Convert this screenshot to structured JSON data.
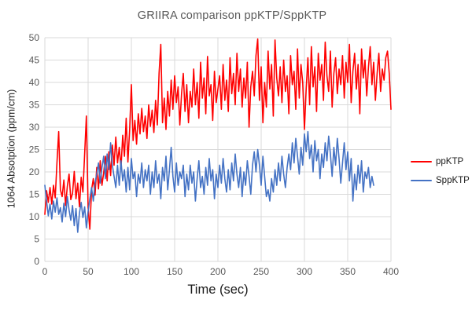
{
  "chart_data": {
    "type": "line",
    "title": "GRIIRA comparison ppKTP/SppKTP",
    "xlabel": "Time (sec)",
    "ylabel": "1064 Absotption (ppm/cm)",
    "xlim": [
      0,
      400
    ],
    "ylim": [
      0,
      50
    ],
    "xticks": [
      0,
      50,
      100,
      150,
      200,
      250,
      300,
      350,
      400
    ],
    "yticks": [
      0,
      5,
      10,
      15,
      20,
      25,
      30,
      35,
      40,
      45,
      50
    ],
    "grid": true,
    "legend_position": "right",
    "colors": {
      "grid": "#d9d9d9",
      "tick_label": "#595959",
      "title": "#595959",
      "axis_title": "#262626"
    },
    "series": [
      {
        "name": "ppKTP",
        "color": "#ff0000",
        "x_start": 0,
        "x_step": 2,
        "y": [
          10.5,
          15.8,
          13.2,
          16.5,
          12.8,
          17.0,
          14.2,
          22.0,
          29.0,
          16.0,
          14.5,
          18.2,
          12.5,
          16.8,
          19.5,
          13.8,
          15.2,
          20.1,
          14.0,
          17.5,
          12.2,
          18.8,
          15.5,
          24.0,
          32.5,
          12.0,
          7.2,
          16.0,
          18.5,
          14.8,
          21.0,
          16.2,
          22.5,
          17.0,
          19.8,
          23.5,
          18.0,
          24.5,
          19.2,
          26.0,
          21.5,
          27.8,
          22.0,
          25.5,
          20.8,
          28.2,
          23.5,
          32.0,
          22.2,
          29.5,
          39.5,
          27.0,
          31.5,
          26.2,
          33.0,
          28.5,
          34.2,
          29.0,
          32.5,
          27.5,
          35.0,
          30.2,
          33.8,
          28.8,
          36.0,
          30.5,
          42.0,
          48.5,
          31.0,
          36.5,
          29.5,
          38.0,
          32.5,
          40.5,
          34.0,
          41.5,
          35.5,
          39.0,
          30.5,
          37.5,
          42.0,
          33.5,
          39.5,
          31.0,
          38.0,
          34.5,
          43.0,
          35.0,
          40.0,
          32.0,
          44.5,
          36.5,
          41.0,
          33.0,
          45.8,
          37.0,
          39.5,
          31.5,
          42.5,
          35.5,
          38.5,
          41.5,
          34.0,
          44.0,
          36.0,
          40.5,
          33.5,
          45.5,
          37.5,
          42.0,
          35.0,
          46.5,
          38.0,
          43.0,
          34.5,
          41.0,
          36.5,
          44.5,
          30.0,
          39.0,
          42.5,
          37.0,
          46.0,
          49.7,
          36.0,
          43.5,
          31.0,
          40.0,
          34.5,
          47.0,
          38.5,
          44.0,
          32.5,
          49.5,
          41.0,
          37.0,
          43.5,
          35.5,
          45.0,
          38.0,
          41.5,
          33.0,
          46.0,
          39.5,
          42.5,
          34.0,
          47.5,
          36.5,
          44.0,
          40.0,
          29.5,
          38.5,
          45.5,
          35.0,
          48.0,
          39.0,
          43.5,
          33.5,
          46.5,
          40.5,
          44.0,
          36.0,
          49.0,
          41.5,
          38.0,
          47.0,
          34.5,
          42.0,
          45.5,
          37.5,
          43.0,
          39.5,
          46.0,
          36.5,
          44.5,
          40.0,
          48.5,
          35.5,
          42.5,
          46.5,
          38.5,
          44.0,
          33.0,
          47.5,
          41.0,
          45.0,
          37.0,
          43.5,
          48.0,
          39.5,
          44.5,
          36.0,
          42.0,
          46.5,
          38.0,
          43.0,
          40.5,
          45.5,
          47.0,
          42.0,
          34.0
        ]
      },
      {
        "name": "SppKTP",
        "color": "#4472c4",
        "x_start": 0,
        "x_step": 2,
        "y": [
          17.0,
          13.5,
          10.2,
          12.8,
          9.5,
          13.5,
          11.0,
          14.2,
          10.5,
          12.0,
          8.8,
          13.0,
          10.0,
          14.5,
          11.5,
          9.2,
          12.5,
          8.0,
          11.8,
          6.5,
          10.8,
          13.2,
          9.8,
          12.2,
          7.5,
          11.2,
          14.0,
          16.5,
          13.5,
          17.5,
          19.5,
          22.0,
          17.5,
          21.0,
          23.5,
          18.5,
          24.0,
          20.5,
          26.5,
          21.5,
          19.0,
          16.5,
          21.5,
          17.0,
          22.5,
          18.0,
          20.5,
          15.5,
          21.0,
          16.0,
          23.0,
          18.5,
          20.0,
          14.5,
          19.5,
          17.5,
          22.0,
          16.5,
          20.5,
          18.0,
          21.5,
          15.0,
          20.0,
          16.5,
          22.5,
          17.5,
          19.5,
          14.0,
          21.0,
          18.0,
          23.5,
          16.0,
          20.5,
          25.5,
          19.0,
          15.5,
          22.0,
          17.0,
          20.0,
          18.5,
          21.5,
          14.5,
          19.5,
          16.0,
          21.5,
          17.5,
          20.0,
          13.5,
          18.5,
          22.5,
          16.5,
          19.0,
          15.0,
          21.0,
          17.0,
          23.0,
          18.0,
          20.5,
          14.0,
          19.5,
          16.5,
          21.5,
          17.5,
          23.0,
          18.5,
          15.5,
          20.5,
          16.0,
          22.0,
          18.0,
          24.0,
          19.5,
          16.5,
          21.0,
          14.5,
          20.0,
          17.0,
          22.5,
          19.0,
          15.0,
          21.5,
          24.5,
          20.0,
          25.0,
          21.5,
          17.0,
          23.5,
          19.0,
          14.5,
          16.0,
          13.5,
          18.5,
          15.5,
          20.5,
          17.0,
          22.0,
          18.0,
          23.5,
          19.5,
          16.5,
          21.0,
          24.0,
          20.5,
          26.5,
          22.0,
          27.5,
          23.5,
          19.5,
          25.5,
          21.5,
          28.5,
          24.5,
          29.0,
          23.0,
          26.0,
          20.0,
          27.0,
          22.5,
          25.0,
          18.5,
          24.0,
          21.0,
          26.5,
          22.5,
          28.0,
          24.0,
          19.0,
          25.5,
          21.5,
          27.5,
          23.0,
          17.5,
          22.0,
          26.5,
          20.5,
          24.5,
          18.0,
          23.0,
          13.5,
          19.5,
          16.0,
          21.5,
          17.5,
          22.5,
          15.5,
          20.0,
          18.5,
          21.0,
          16.5,
          19.0,
          17.0
        ]
      }
    ]
  },
  "legend": {
    "items": [
      {
        "label": "ppKTP"
      },
      {
        "label": "SppKTP"
      }
    ]
  }
}
